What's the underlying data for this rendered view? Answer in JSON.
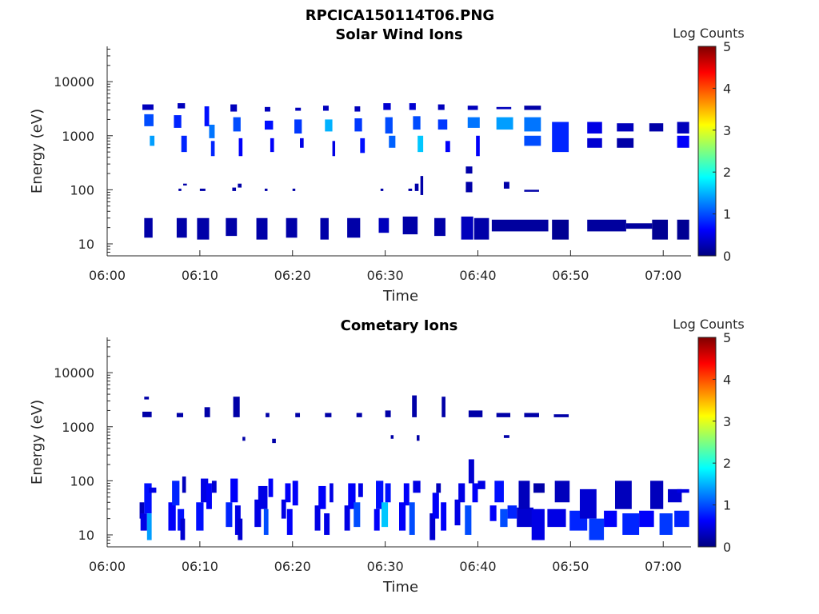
{
  "figure_title": "RPCICA150114T06.PNG",
  "colors": {
    "background": "#ffffff",
    "axis": "#262626",
    "colormap": [
      "#00007f",
      "#0000ff",
      "#007fff",
      "#00ffff",
      "#7fff7f",
      "#ffff00",
      "#ff7f00",
      "#ff0000",
      "#7f0000"
    ]
  },
  "chart_data": [
    {
      "type": "heatmap",
      "title": "Solar Wind Ions",
      "xlabel": "Time",
      "ylabel": "Energy (eV)",
      "y_scale": "log",
      "ylim": [
        6,
        45000
      ],
      "xlim": [
        "06:00",
        "07:03"
      ],
      "x_ticks": [
        "06:00",
        "06:10",
        "06:20",
        "06:30",
        "06:40",
        "06:50",
        "07:00"
      ],
      "y_ticks": [
        "10",
        "100",
        "1000",
        "10000"
      ],
      "colorbar": {
        "label": "Log Counts",
        "range": [
          0,
          5
        ],
        "ticks": [
          "0",
          "1",
          "2",
          "3",
          "4",
          "5"
        ]
      },
      "cells": [
        [
          4.0,
          4.9,
          13,
          30,
          0.2
        ],
        [
          7.5,
          8.6,
          13,
          30,
          0.2
        ],
        [
          9.7,
          11.0,
          12,
          30,
          0.2
        ],
        [
          12.8,
          14.0,
          14,
          30,
          0.2
        ],
        [
          16.1,
          17.3,
          12,
          30,
          0.2
        ],
        [
          19.3,
          20.5,
          13,
          30,
          0.2
        ],
        [
          23.0,
          23.9,
          12,
          30,
          0.2
        ],
        [
          25.9,
          27.3,
          13,
          30,
          0.2
        ],
        [
          29.3,
          30.4,
          16,
          30,
          0.3
        ],
        [
          31.9,
          33.5,
          15,
          32,
          0.2
        ],
        [
          35.3,
          36.5,
          14,
          30,
          0.2
        ],
        [
          38.2,
          39.5,
          12,
          32,
          0.3
        ],
        [
          39.6,
          41.2,
          12,
          30,
          0.2
        ],
        [
          41.5,
          47.6,
          17,
          28,
          0.15
        ],
        [
          48.0,
          49.8,
          12,
          28,
          0.1
        ],
        [
          51.8,
          56.0,
          17,
          28,
          0.15
        ],
        [
          56.0,
          58.8,
          19,
          24,
          0.15
        ],
        [
          58.8,
          60.5,
          12,
          28,
          0.1
        ],
        [
          61.5,
          62.8,
          12,
          28,
          0.1
        ],
        [
          4.0,
          5.0,
          1500,
          2500,
          1.0
        ],
        [
          3.8,
          5.0,
          3000,
          3800,
          0.3
        ],
        [
          4.6,
          5.1,
          650,
          1000,
          1.4
        ],
        [
          7.2,
          8.0,
          1400,
          2400,
          0.8
        ],
        [
          7.6,
          8.4,
          3200,
          4000,
          0.3
        ],
        [
          8.0,
          8.6,
          500,
          1000,
          0.8
        ],
        [
          10.5,
          11.0,
          1500,
          3500,
          0.7
        ],
        [
          11.0,
          11.6,
          900,
          1600,
          1.2
        ],
        [
          11.2,
          11.6,
          420,
          800,
          0.8
        ],
        [
          13.3,
          14.0,
          2800,
          3800,
          0.3
        ],
        [
          13.6,
          14.4,
          1200,
          2200,
          1.0
        ],
        [
          14.2,
          14.6,
          420,
          900,
          0.6
        ],
        [
          17.0,
          17.6,
          2800,
          3400,
          0.3
        ],
        [
          17.0,
          17.9,
          1300,
          1900,
          0.7
        ],
        [
          17.6,
          18.0,
          500,
          900,
          0.6
        ],
        [
          20.3,
          20.9,
          2900,
          3300,
          0.3
        ],
        [
          20.2,
          21.0,
          1100,
          2000,
          0.9
        ],
        [
          20.8,
          21.2,
          600,
          900,
          0.5
        ],
        [
          23.3,
          23.9,
          2900,
          3600,
          0.3
        ],
        [
          23.5,
          24.3,
          1200,
          2000,
          1.5
        ],
        [
          24.3,
          24.6,
          420,
          800,
          0.5
        ],
        [
          26.7,
          27.3,
          2800,
          3500,
          0.3
        ],
        [
          26.7,
          27.5,
          1200,
          2100,
          0.9
        ],
        [
          27.3,
          27.8,
          480,
          900,
          0.7
        ],
        [
          29.8,
          30.6,
          3000,
          4000,
          0.4
        ],
        [
          30.0,
          30.8,
          1100,
          2200,
          1.0
        ],
        [
          30.4,
          31.1,
          600,
          1000,
          1.1
        ],
        [
          32.6,
          33.3,
          3000,
          4000,
          0.4
        ],
        [
          33.0,
          33.8,
          1300,
          2300,
          1.0
        ],
        [
          33.5,
          34.1,
          500,
          1000,
          1.6
        ],
        [
          35.7,
          36.4,
          3000,
          3800,
          0.3
        ],
        [
          35.7,
          36.7,
          1300,
          2000,
          0.9
        ],
        [
          36.5,
          37.0,
          500,
          800,
          0.6
        ],
        [
          38.9,
          40.0,
          3000,
          3600,
          0.3
        ],
        [
          38.9,
          40.2,
          1400,
          2200,
          1.2
        ],
        [
          39.8,
          40.2,
          420,
          1000,
          0.6
        ],
        [
          42.0,
          43.8,
          1300,
          2200,
          1.4
        ],
        [
          42.0,
          43.6,
          3100,
          3400,
          0.3
        ],
        [
          45.0,
          46.8,
          1200,
          2200,
          1.2
        ],
        [
          45.0,
          46.8,
          3000,
          3600,
          0.2
        ],
        [
          45.0,
          46.8,
          650,
          1000,
          1.0
        ],
        [
          48.0,
          49.8,
          500,
          1800,
          0.8
        ],
        [
          51.8,
          53.4,
          1100,
          1800,
          0.5
        ],
        [
          51.8,
          53.4,
          600,
          900,
          0.4
        ],
        [
          55.0,
          56.8,
          1200,
          1700,
          0.3
        ],
        [
          55.0,
          56.8,
          600,
          900,
          0.2
        ],
        [
          58.5,
          60.0,
          1200,
          1700,
          0.2
        ],
        [
          61.5,
          62.8,
          1100,
          1800,
          0.3
        ],
        [
          61.5,
          62.8,
          600,
          1000,
          0.6
        ],
        [
          8.2,
          8.6,
          120,
          130,
          0.2
        ],
        [
          7.7,
          8.0,
          95,
          105,
          0.2
        ],
        [
          10.0,
          10.6,
          95,
          105,
          0.2
        ],
        [
          13.5,
          13.9,
          95,
          110,
          0.2
        ],
        [
          14.1,
          14.5,
          110,
          130,
          0.2
        ],
        [
          17.0,
          17.3,
          95,
          105,
          0.2
        ],
        [
          20.0,
          20.3,
          95,
          105,
          0.2
        ],
        [
          29.5,
          29.8,
          95,
          105,
          0.2
        ],
        [
          32.5,
          32.9,
          95,
          105,
          0.2
        ],
        [
          33.2,
          33.6,
          95,
          130,
          0.2
        ],
        [
          33.8,
          34.1,
          80,
          180,
          0.2
        ],
        [
          38.7,
          39.4,
          200,
          270,
          0.2
        ],
        [
          38.7,
          39.4,
          90,
          140,
          0.2
        ],
        [
          42.8,
          43.4,
          105,
          140,
          0.2
        ],
        [
          45.0,
          46.6,
          92,
          100,
          0.2
        ]
      ]
    },
    {
      "type": "heatmap",
      "title": "Cometary Ions",
      "xlabel": "Time",
      "ylabel": "Energy (eV)",
      "y_scale": "log",
      "ylim": [
        6,
        45000
      ],
      "xlim": [
        "06:00",
        "07:03"
      ],
      "x_ticks": [
        "06:00",
        "06:10",
        "06:20",
        "06:30",
        "06:40",
        "06:50",
        "07:00"
      ],
      "y_ticks": [
        "10",
        "100",
        "1000",
        "10000"
      ],
      "colorbar": {
        "label": "Log Counts",
        "range": [
          0,
          5
        ],
        "ticks": [
          "0",
          "1",
          "2",
          "3",
          "4",
          "5"
        ]
      },
      "cells": [
        [
          3.8,
          4.8,
          1500,
          1900,
          0.2
        ],
        [
          4.0,
          4.5,
          3200,
          3600,
          0.2
        ],
        [
          7.5,
          8.2,
          1500,
          1800,
          0.2
        ],
        [
          10.5,
          11.1,
          1500,
          2300,
          0.2
        ],
        [
          13.6,
          14.3,
          1500,
          3600,
          0.2
        ],
        [
          17.1,
          17.5,
          1500,
          1800,
          0.2
        ],
        [
          20.3,
          20.8,
          1500,
          1800,
          0.2
        ],
        [
          23.5,
          24.2,
          1500,
          1800,
          0.2
        ],
        [
          26.9,
          27.5,
          1500,
          1800,
          0.2
        ],
        [
          30.0,
          30.6,
          1500,
          2000,
          0.2
        ],
        [
          32.9,
          33.4,
          1500,
          3800,
          0.2
        ],
        [
          36.1,
          36.5,
          1500,
          3600,
          0.2
        ],
        [
          39.0,
          40.5,
          1500,
          2000,
          0.2
        ],
        [
          42.0,
          43.5,
          1500,
          1800,
          0.2
        ],
        [
          45.0,
          46.6,
          1500,
          1800,
          0.2
        ],
        [
          48.2,
          49.8,
          1500,
          1700,
          0.2
        ],
        [
          14.6,
          14.9,
          550,
          650,
          0.2
        ],
        [
          17.8,
          18.2,
          500,
          600,
          0.2
        ],
        [
          30.6,
          30.9,
          600,
          700,
          0.2
        ],
        [
          33.4,
          33.7,
          550,
          700,
          0.2
        ],
        [
          42.8,
          43.4,
          620,
          700,
          0.2
        ],
        [
          3.5,
          4.0,
          20,
          40,
          0.3
        ],
        [
          3.6,
          4.3,
          12,
          25,
          0.5
        ],
        [
          4.0,
          4.8,
          25,
          90,
          0.7
        ],
        [
          4.3,
          4.8,
          8,
          25,
          1.4
        ],
        [
          4.5,
          5.3,
          60,
          75,
          0.5
        ],
        [
          6.6,
          7.4,
          12,
          40,
          0.6
        ],
        [
          7.0,
          7.8,
          35,
          100,
          0.8
        ],
        [
          7.6,
          8.3,
          12,
          30,
          0.7
        ],
        [
          7.9,
          8.4,
          8,
          20,
          0.4
        ],
        [
          8.1,
          8.5,
          60,
          120,
          0.3
        ],
        [
          9.6,
          10.4,
          12,
          40,
          0.7
        ],
        [
          10.1,
          10.9,
          40,
          110,
          0.5
        ],
        [
          10.7,
          11.3,
          30,
          90,
          0.6
        ],
        [
          11.3,
          11.8,
          60,
          100,
          0.4
        ],
        [
          12.8,
          13.5,
          14,
          40,
          0.8
        ],
        [
          13.3,
          14.1,
          40,
          110,
          0.6
        ],
        [
          13.8,
          14.4,
          10,
          35,
          0.5
        ],
        [
          14.1,
          14.6,
          8,
          20,
          0.4
        ],
        [
          15.9,
          16.6,
          14,
          45,
          0.5
        ],
        [
          16.3,
          17.3,
          30,
          80,
          0.5
        ],
        [
          16.9,
          17.4,
          10,
          30,
          1.0
        ],
        [
          17.4,
          17.9,
          50,
          110,
          0.6
        ],
        [
          18.8,
          19.3,
          20,
          45,
          0.5
        ],
        [
          19.2,
          19.8,
          40,
          90,
          0.6
        ],
        [
          19.4,
          20.0,
          10,
          30,
          0.6
        ],
        [
          20.0,
          20.6,
          35,
          100,
          0.6
        ],
        [
          22.4,
          23.0,
          12,
          35,
          0.5
        ],
        [
          22.8,
          23.6,
          30,
          80,
          0.6
        ],
        [
          23.4,
          24.0,
          10,
          25,
          0.5
        ],
        [
          24.0,
          24.4,
          40,
          90,
          0.5
        ],
        [
          25.6,
          26.2,
          12,
          35,
          0.5
        ],
        [
          26.0,
          26.8,
          30,
          90,
          0.6
        ],
        [
          26.6,
          27.3,
          14,
          40,
          1.0
        ],
        [
          27.1,
          27.6,
          50,
          90,
          0.5
        ],
        [
          28.8,
          29.4,
          12,
          30,
          0.6
        ],
        [
          29.0,
          29.8,
          30,
          100,
          0.7
        ],
        [
          29.6,
          30.3,
          14,
          40,
          1.6
        ],
        [
          30.0,
          30.6,
          40,
          90,
          0.7
        ],
        [
          31.5,
          32.2,
          12,
          40,
          0.6
        ],
        [
          32.0,
          32.6,
          35,
          90,
          0.6
        ],
        [
          32.6,
          33.2,
          10,
          40,
          1.0
        ],
        [
          33.0,
          33.8,
          60,
          100,
          0.5
        ],
        [
          34.8,
          35.4,
          8,
          25,
          0.4
        ],
        [
          35.1,
          35.8,
          20,
          60,
          0.6
        ],
        [
          35.5,
          36.0,
          60,
          90,
          0.3
        ],
        [
          36.0,
          36.6,
          12,
          40,
          0.6
        ],
        [
          37.5,
          38.1,
          15,
          45,
          0.5
        ],
        [
          37.9,
          38.6,
          40,
          90,
          0.5
        ],
        [
          38.6,
          39.3,
          10,
          35,
          1.0
        ],
        [
          39.0,
          39.6,
          90,
          250,
          0.4
        ],
        [
          39.4,
          40.0,
          40,
          90,
          0.6
        ],
        [
          40.0,
          40.8,
          70,
          100,
          0.5
        ],
        [
          41.3,
          42.0,
          18,
          35,
          0.6
        ],
        [
          41.8,
          42.8,
          40,
          100,
          0.7
        ],
        [
          42.4,
          43.2,
          14,
          30,
          1.0
        ],
        [
          43.2,
          44.2,
          20,
          35,
          0.8
        ],
        [
          44.2,
          46.0,
          14,
          32,
          0.4
        ],
        [
          44.4,
          45.6,
          30,
          100,
          0.3
        ],
        [
          45.8,
          47.2,
          8,
          30,
          0.5
        ],
        [
          46.0,
          47.2,
          60,
          90,
          0.2
        ],
        [
          47.5,
          49.5,
          14,
          30,
          0.5
        ],
        [
          48.3,
          49.9,
          40,
          100,
          0.3
        ],
        [
          49.9,
          51.8,
          12,
          28,
          0.8
        ],
        [
          51.0,
          52.8,
          20,
          70,
          0.4
        ],
        [
          52.0,
          53.6,
          8,
          20,
          0.9
        ],
        [
          53.6,
          55.0,
          14,
          28,
          0.6
        ],
        [
          54.8,
          56.6,
          30,
          100,
          0.3
        ],
        [
          55.6,
          57.4,
          10,
          25,
          0.8
        ],
        [
          57.4,
          59.0,
          14,
          28,
          0.6
        ],
        [
          58.6,
          60.0,
          30,
          100,
          0.3
        ],
        [
          59.6,
          61.0,
          10,
          25,
          0.9
        ],
        [
          60.5,
          62.0,
          40,
          70,
          0.4
        ],
        [
          61.2,
          62.8,
          14,
          28,
          0.8
        ],
        [
          61.5,
          62.8,
          60,
          70,
          0.5
        ]
      ]
    }
  ]
}
